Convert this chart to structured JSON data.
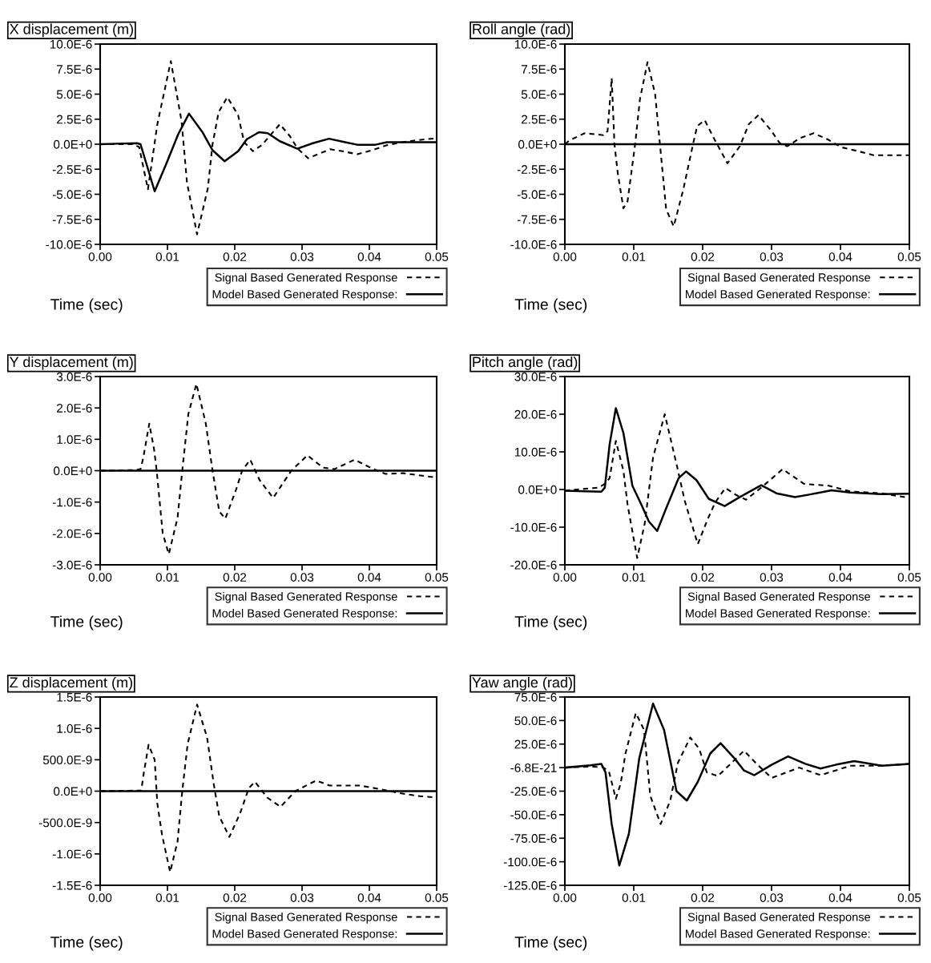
{
  "chart_data": [
    {
      "type": "line",
      "title": "X displacement (m)",
      "xlabel": "Time (sec)",
      "legend": "bottom right",
      "grid": false,
      "xlim": [
        0,
        0.05
      ],
      "xticks": [
        {
          "value": 0,
          "label": "0.00"
        },
        {
          "value": 0.01,
          "label": "0.01"
        },
        {
          "value": 0.02,
          "label": "0.02"
        },
        {
          "value": 0.03,
          "label": "0.03"
        },
        {
          "value": 0.04,
          "label": "0.04"
        },
        {
          "value": 0.05,
          "label": "0.05"
        }
      ],
      "ylim": [
        -1e-05,
        1e-05
      ],
      "yticks": [
        {
          "value": -1e-05,
          "label": "-10.0E-6"
        },
        {
          "value": -7.5e-06,
          "label": "-7.5E-6"
        },
        {
          "value": -5e-06,
          "label": "-5.0E-6"
        },
        {
          "value": -2.5e-06,
          "label": "-2.5E-6"
        },
        {
          "value": 0,
          "label": "0.0E+0"
        },
        {
          "value": 2.5e-06,
          "label": "2.5E-6"
        },
        {
          "value": 5e-06,
          "label": "5.0E-6"
        },
        {
          "value": 7.5e-06,
          "label": "7.5E-6"
        },
        {
          "value": 1e-05,
          "label": "10.0E-6"
        }
      ],
      "series": [
        {
          "name": "Signal Based Generated Response",
          "color": "#000000",
          "line_style": "dashed",
          "x": [
            0,
            0.005,
            0.0058,
            0.0071,
            0.0085,
            0.0105,
            0.0121,
            0.0129,
            0.0144,
            0.016,
            0.0167,
            0.0176,
            0.0189,
            0.0205,
            0.0214,
            0.0227,
            0.024,
            0.0267,
            0.0282,
            0.0293,
            0.0309,
            0.0327,
            0.0342,
            0.036,
            0.0382,
            0.0404,
            0.0426,
            0.0449,
            0.0471,
            0.05
          ],
          "values": [
            0,
            0,
            -3e-07,
            -4.5e-06,
            2e-06,
            8.3e-06,
            2.3e-06,
            -3.8e-06,
            -9e-06,
            -4.4e-06,
            0,
            3.2e-06,
            4.7e-06,
            2.9e-06,
            2e-07,
            -7e-07,
            -1e-07,
            2e-06,
            8e-07,
            -4e-07,
            -1.4e-06,
            -9e-07,
            -5e-07,
            -7e-07,
            -1e-06,
            -6e-07,
            -1e-07,
            2e-07,
            4e-07,
            6e-07
          ]
        },
        {
          "name": "Model Based Generated Response:",
          "color": "#000000",
          "line_style": "solid",
          "x": [
            0,
            0.0023,
            0.0055,
            0.006,
            0.0081,
            0.0098,
            0.0116,
            0.0132,
            0.0152,
            0.0167,
            0.0185,
            0.0205,
            0.0218,
            0.0236,
            0.0249,
            0.0267,
            0.0293,
            0.0316,
            0.034,
            0.0364,
            0.0382,
            0.0409,
            0.0426,
            0.0471,
            0.05
          ],
          "values": [
            0,
            5e-08,
            1e-07,
            0,
            -4.7e-06,
            -2e-06,
            1e-06,
            3.05e-06,
            1.2e-06,
            -6e-07,
            -1.7e-06,
            -7e-07,
            5e-07,
            1.2e-06,
            1.1e-06,
            3e-07,
            -4.5e-07,
            1e-07,
            5.5e-07,
            2e-07,
            -5e-08,
            -5e-08,
            2e-07,
            2e-07,
            2e-07
          ]
        }
      ]
    },
    {
      "type": "line",
      "title": "Roll angle (rad)",
      "xlabel": "Time (sec)",
      "legend": "bottom right",
      "grid": false,
      "xlim": [
        0,
        0.05
      ],
      "xticks": [
        {
          "value": 0,
          "label": "0.00"
        },
        {
          "value": 0.01,
          "label": "0.01"
        },
        {
          "value": 0.02,
          "label": "0.02"
        },
        {
          "value": 0.03,
          "label": "0.03"
        },
        {
          "value": 0.04,
          "label": "0.04"
        },
        {
          "value": 0.05,
          "label": "0.05"
        }
      ],
      "ylim": [
        -1e-05,
        1e-05
      ],
      "yticks": [
        {
          "value": -1e-05,
          "label": "-10.0E-6"
        },
        {
          "value": -7.5e-06,
          "label": "-7.5E-6"
        },
        {
          "value": -5e-06,
          "label": "-5.0E-6"
        },
        {
          "value": -2.5e-06,
          "label": "-2.5E-6"
        },
        {
          "value": 0,
          "label": "0.0E+0"
        },
        {
          "value": 2.5e-06,
          "label": "2.5E-6"
        },
        {
          "value": 5e-06,
          "label": "5.0E-6"
        },
        {
          "value": 7.5e-06,
          "label": "7.5E-6"
        },
        {
          "value": 1e-05,
          "label": "10.0E-6"
        }
      ],
      "series": [
        {
          "name": "Signal Based Generated Response",
          "color": "#000000",
          "line_style": "dashed",
          "x": [
            0,
            0.0007,
            0.0029,
            0.0056,
            0.0062,
            0.0068,
            0.0072,
            0.0077,
            0.0085,
            0.0091,
            0.0102,
            0.0109,
            0.012,
            0.0131,
            0.0138,
            0.0147,
            0.0158,
            0.0172,
            0.0186,
            0.0192,
            0.0203,
            0.0217,
            0.0236,
            0.0254,
            0.0267,
            0.0281,
            0.0299,
            0.0312,
            0.0323,
            0.0341,
            0.0361,
            0.0381,
            0.0401,
            0.0426,
            0.0448,
            0.05
          ],
          "values": [
            0,
            4e-07,
            1.1e-06,
            9e-07,
            1.3e-06,
            6.6e-06,
            0,
            -3e-06,
            -6.4e-06,
            -5.7e-06,
            0,
            4.5e-06,
            8.2e-06,
            5e-06,
            0,
            -6.5e-06,
            -8.2e-06,
            -4.5e-06,
            0,
            1.8e-06,
            2.4e-06,
            5e-07,
            -1.9e-06,
            -2e-07,
            2e-06,
            2.9e-06,
            1.4e-06,
            1e-07,
            -2e-07,
            6e-07,
            1.1e-06,
            5e-07,
            -3e-07,
            -7e-07,
            -1.1e-06,
            -1.1e-06
          ]
        },
        {
          "name": "Model Based Generated Response:",
          "color": "#000000",
          "line_style": "solid",
          "x": [
            0,
            0.05
          ],
          "values": [
            0,
            0
          ]
        }
      ]
    },
    {
      "type": "line",
      "title": "Y displacement (m)",
      "xlabel": "Time (sec)",
      "legend": "bottom right",
      "grid": false,
      "xlim": [
        0,
        0.05
      ],
      "xticks": [
        {
          "value": 0,
          "label": "0.00"
        },
        {
          "value": 0.01,
          "label": "0.01"
        },
        {
          "value": 0.02,
          "label": "0.02"
        },
        {
          "value": 0.03,
          "label": "0.03"
        },
        {
          "value": 0.04,
          "label": "0.04"
        },
        {
          "value": 0.05,
          "label": "0.05"
        }
      ],
      "ylim": [
        -3e-06,
        3e-06
      ],
      "yticks": [
        {
          "value": -3e-06,
          "label": "-3.0E-6"
        },
        {
          "value": -2e-06,
          "label": "-2.0E-6"
        },
        {
          "value": -1e-06,
          "label": "-1.0E-6"
        },
        {
          "value": 0,
          "label": "0.0E+0"
        },
        {
          "value": 1e-06,
          "label": "1.0E-6"
        },
        {
          "value": 2e-06,
          "label": "2.0E-6"
        },
        {
          "value": 3e-06,
          "label": "3.0E-6"
        }
      ],
      "series": [
        {
          "name": "Signal Based Generated Response",
          "color": "#000000",
          "line_style": "dashed",
          "x": [
            0,
            0.0051,
            0.006,
            0.0064,
            0.0073,
            0.008,
            0.0084,
            0.0093,
            0.0102,
            0.0115,
            0.0122,
            0.0131,
            0.0143,
            0.0157,
            0.0167,
            0.0177,
            0.0186,
            0.0202,
            0.0211,
            0.0223,
            0.0237,
            0.0257,
            0.0284,
            0.0308,
            0.0331,
            0.0348,
            0.0378,
            0.0406,
            0.0424,
            0.045,
            0.05
          ],
          "values": [
            0,
            2e-08,
            5e-08,
            4e-07,
            1.5e-06,
            7e-07,
            0,
            -2e-06,
            -2.66e-06,
            -1.5e-06,
            0,
            1.8e-06,
            2.77e-06,
            1.5e-06,
            0,
            -1.3e-06,
            -1.53e-06,
            -6e-07,
            0,
            3.5e-07,
            -3e-07,
            -8.7e-07,
            0,
            4.9e-07,
            1e-07,
            5e-08,
            3.5e-07,
            5e-08,
            -1e-07,
            -8e-08,
            -2.2e-07
          ]
        },
        {
          "name": "Model Based Generated Response:",
          "color": "#000000",
          "line_style": "solid",
          "x": [
            0,
            0.05
          ],
          "values": [
            0,
            0
          ]
        }
      ]
    },
    {
      "type": "line",
      "title": "Pitch angle (rad)",
      "xlabel": "Time (sec)",
      "legend": "bottom right",
      "grid": false,
      "xlim": [
        0,
        0.05
      ],
      "xticks": [
        {
          "value": 0,
          "label": "0.00"
        },
        {
          "value": 0.01,
          "label": "0.01"
        },
        {
          "value": 0.02,
          "label": "0.02"
        },
        {
          "value": 0.03,
          "label": "0.03"
        },
        {
          "value": 0.04,
          "label": "0.04"
        },
        {
          "value": 0.05,
          "label": "0.05"
        }
      ],
      "ylim": [
        -2e-05,
        3e-05
      ],
      "yticks": [
        {
          "value": -2e-05,
          "label": "-20.0E-6"
        },
        {
          "value": -1e-05,
          "label": "-10.0E-6"
        },
        {
          "value": 0,
          "label": "0.0E+0"
        },
        {
          "value": 1e-05,
          "label": "10.0E-6"
        },
        {
          "value": 2e-05,
          "label": "20.0E-6"
        },
        {
          "value": 3e-05,
          "label": "30.0E-6"
        }
      ],
      "series": [
        {
          "name": "Signal Based Generated Response",
          "color": "#000000",
          "line_style": "dashed",
          "x": [
            0,
            0.0049,
            0.0058,
            0.0065,
            0.0074,
            0.0085,
            0.0091,
            0.0105,
            0.0116,
            0.0128,
            0.0145,
            0.0163,
            0.0174,
            0.0193,
            0.0207,
            0.0218,
            0.0233,
            0.0249,
            0.0263,
            0.0285,
            0.0316,
            0.0347,
            0.0383,
            0.0414,
            0.0459,
            0.05
          ],
          "values": [
            -3e-07,
            5e-07,
            1.5e-06,
            3e-06,
            1.29e-05,
            5e-06,
            -4e-06,
            -1.82e-05,
            -9e-06,
            8.5e-06,
            2e-05,
            6e-06,
            -3e-06,
            -1.45e-05,
            -8e-06,
            -3.5e-06,
            4e-07,
            -1.5e-06,
            -2.7e-06,
            5e-07,
            5.4e-06,
            1.5e-06,
            1e-06,
            -5e-07,
            -1e-06,
            -2.2e-06
          ]
        },
        {
          "name": "Model Based Generated Response:",
          "color": "#000000",
          "line_style": "solid",
          "x": [
            0,
            0.0053,
            0.0058,
            0.0065,
            0.0074,
            0.0085,
            0.0098,
            0.0111,
            0.0122,
            0.0134,
            0.0147,
            0.0165,
            0.0176,
            0.0191,
            0.0209,
            0.0232,
            0.0254,
            0.0285,
            0.0307,
            0.0334,
            0.0356,
            0.0387,
            0.0414,
            0.0459,
            0.05
          ],
          "values": [
            -3e-07,
            -6e-07,
            5e-07,
            1.2e-05,
            2.16e-05,
            1.5e-05,
            1e-06,
            -4e-06,
            -8.5e-06,
            -1.1e-05,
            -5e-06,
            3e-06,
            4.8e-06,
            2.5e-06,
            -2.5e-06,
            -4.4e-06,
            -2e-06,
            1.15e-06,
            -1e-06,
            -2e-06,
            -1.3e-06,
            -2e-07,
            -8e-07,
            -1.2e-06,
            -1.1e-06
          ]
        }
      ]
    },
    {
      "type": "line",
      "title": "Z displacement (m)",
      "xlabel": "Time (sec)",
      "legend": "bottom right",
      "grid": false,
      "xlim": [
        0,
        0.05
      ],
      "xticks": [
        {
          "value": 0,
          "label": "0.00"
        },
        {
          "value": 0.01,
          "label": "0.01"
        },
        {
          "value": 0.02,
          "label": "0.02"
        },
        {
          "value": 0.03,
          "label": "0.03"
        },
        {
          "value": 0.04,
          "label": "0.04"
        },
        {
          "value": 0.05,
          "label": "0.05"
        }
      ],
      "ylim": [
        -1.5e-06,
        1.5e-06
      ],
      "yticks": [
        {
          "value": -1.5e-06,
          "label": "-1.5E-6"
        },
        {
          "value": -1e-06,
          "label": "-1.0E-6"
        },
        {
          "value": -5e-07,
          "label": "-500.0E-9"
        },
        {
          "value": 0,
          "label": "0.0E+0"
        },
        {
          "value": 5e-07,
          "label": "500.0E-9"
        },
        {
          "value": 1e-06,
          "label": "1.0E-6"
        },
        {
          "value": 1.5e-06,
          "label": "1.5E-6"
        }
      ],
      "series": [
        {
          "name": "Signal Based Generated Response",
          "color": "#000000",
          "line_style": "dashed",
          "x": [
            0,
            0.0061,
            0.0065,
            0.0072,
            0.0081,
            0.0085,
            0.0092,
            0.0104,
            0.0115,
            0.0122,
            0.013,
            0.0144,
            0.0159,
            0.0169,
            0.0177,
            0.0192,
            0.0208,
            0.0221,
            0.023,
            0.0248,
            0.0268,
            0.029,
            0.0321,
            0.0341,
            0.0386,
            0.0422,
            0.0444,
            0.0475,
            0.05
          ],
          "values": [
            0,
            1e-08,
            3e-07,
            7.4e-07,
            5e-07,
            -2e-07,
            -7e-07,
            -1.29e-06,
            -8e-07,
            0,
            7.5e-07,
            1.38e-06,
            8.5e-07,
            1e-07,
            -4e-07,
            -7.3e-07,
            -3.5e-07,
            5e-08,
            1.5e-07,
            -1e-07,
            -2.5e-07,
            0,
            1.7e-07,
            9e-08,
            9e-08,
            2e-08,
            -3e-08,
            -8e-08,
            -1e-07
          ]
        },
        {
          "name": "Model Based Generated Response:",
          "color": "#000000",
          "line_style": "solid",
          "x": [
            0,
            0.05
          ],
          "values": [
            0,
            0
          ]
        }
      ]
    },
    {
      "type": "line",
      "title": "Yaw angle (rad)",
      "xlabel": "Time (sec)",
      "legend": "bottom right",
      "grid": false,
      "xlim": [
        0,
        0.05
      ],
      "xticks": [
        {
          "value": 0,
          "label": "0.00"
        },
        {
          "value": 0.01,
          "label": "0.01"
        },
        {
          "value": 0.02,
          "label": "0.02"
        },
        {
          "value": 0.03,
          "label": "0.03"
        },
        {
          "value": 0.04,
          "label": "0.04"
        },
        {
          "value": 0.05,
          "label": "0.05"
        }
      ],
      "ylim": [
        -0.000125,
        7.5e-05
      ],
      "yticks": [
        {
          "value": -0.000125,
          "label": "-125.0E-6"
        },
        {
          "value": -0.0001,
          "label": "-100.0E-6"
        },
        {
          "value": -7.5e-05,
          "label": "-75.0E-6"
        },
        {
          "value": -5e-05,
          "label": "-50.0E-6"
        },
        {
          "value": -2.5e-05,
          "label": "-25.0E-6"
        },
        {
          "value": -6.8e-21,
          "label": "-6.8E-21"
        },
        {
          "value": 2.5e-05,
          "label": "25.0E-6"
        },
        {
          "value": 5e-05,
          "label": "50.0E-6"
        },
        {
          "value": 7.5e-05,
          "label": "75.0E-6"
        }
      ],
      "series": [
        {
          "name": "Signal Based Generated Response",
          "color": "#000000",
          "line_style": "dashed",
          "x": [
            0,
            0.0015,
            0.0037,
            0.0055,
            0.0064,
            0.0074,
            0.0081,
            0.0088,
            0.0103,
            0.0115,
            0.0124,
            0.0139,
            0.0153,
            0.0164,
            0.0182,
            0.0195,
            0.0206,
            0.0222,
            0.0242,
            0.026,
            0.0277,
            0.03,
            0.034,
            0.0371,
            0.0415,
            0.046,
            0.05
          ],
          "values": [
            0,
            5e-07,
            1e-06,
            5e-07,
            -4e-06,
            -3.3e-05,
            -1.7e-05,
            1.5e-05,
            5.8e-05,
            4e-05,
            -3e-05,
            -6e-05,
            -3.5e-05,
            5e-06,
            3.2e-05,
            2e-05,
            -5e-06,
            -9e-06,
            5e-06,
            1.8e-05,
            5e-06,
            -1.1e-05,
            0,
            -8e-06,
            2e-06,
            2e-06,
            4e-06
          ]
        },
        {
          "name": "Model Based Generated Response:",
          "color": "#000000",
          "line_style": "solid",
          "x": [
            0,
            0.0037,
            0.0053,
            0.0059,
            0.0068,
            0.0079,
            0.0093,
            0.0108,
            0.0128,
            0.0144,
            0.0162,
            0.0177,
            0.0193,
            0.0211,
            0.0226,
            0.0246,
            0.026,
            0.0275,
            0.03,
            0.0324,
            0.0349,
            0.0371,
            0.0393,
            0.042,
            0.046,
            0.05
          ],
          "values": [
            0,
            2.5e-06,
            4e-06,
            -5e-06,
            -6e-05,
            -0.000104,
            -7e-05,
            1e-05,
            6.8e-05,
            4e-05,
            -2.5e-05,
            -3.5e-05,
            -1.5e-05,
            1.5e-05,
            2.6e-05,
            1e-05,
            -3e-06,
            -8e-06,
            3e-06,
            1.2e-05,
            4e-06,
            -1e-06,
            3e-06,
            7e-06,
            2e-06,
            4e-06
          ]
        }
      ]
    }
  ]
}
